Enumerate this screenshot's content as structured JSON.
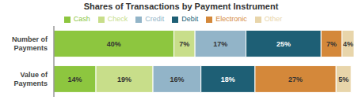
{
  "chart_data": {
    "type": "bar",
    "title": "Shares of Transactions by Payment Instrument",
    "orientation": "horizontal",
    "stacked": true,
    "data_labels": true,
    "tick_labels": "y",
    "grid": false,
    "legend": "top",
    "categories": [
      "Number of\nPayments",
      "Value of\nPayments"
    ],
    "xlim": [
      0,
      100
    ],
    "series": [
      {
        "name": "Cash",
        "color": "#8dc63f",
        "values": [
          40,
          14
        ],
        "value_labels": [
          "40%",
          "14%"
        ]
      },
      {
        "name": "Check",
        "color": "#c8de8a",
        "values": [
          7,
          19
        ],
        "value_labels": [
          "7%",
          "19%"
        ]
      },
      {
        "name": "Credit",
        "color": "#92b4c8",
        "values": [
          17,
          16
        ],
        "value_labels": [
          "17%",
          "16%"
        ]
      },
      {
        "name": "Debit",
        "color": "#1e5f75",
        "values": [
          25,
          18
        ],
        "value_labels": [
          "25%",
          "18%"
        ]
      },
      {
        "name": "Electronic",
        "color": "#d4883a",
        "values": [
          7,
          27
        ],
        "value_labels": [
          "7%",
          "27%"
        ]
      },
      {
        "name": "Other",
        "color": "#e8d5aa",
        "values": [
          4,
          5
        ],
        "value_labels": [
          "4%",
          "5%"
        ]
      }
    ]
  }
}
